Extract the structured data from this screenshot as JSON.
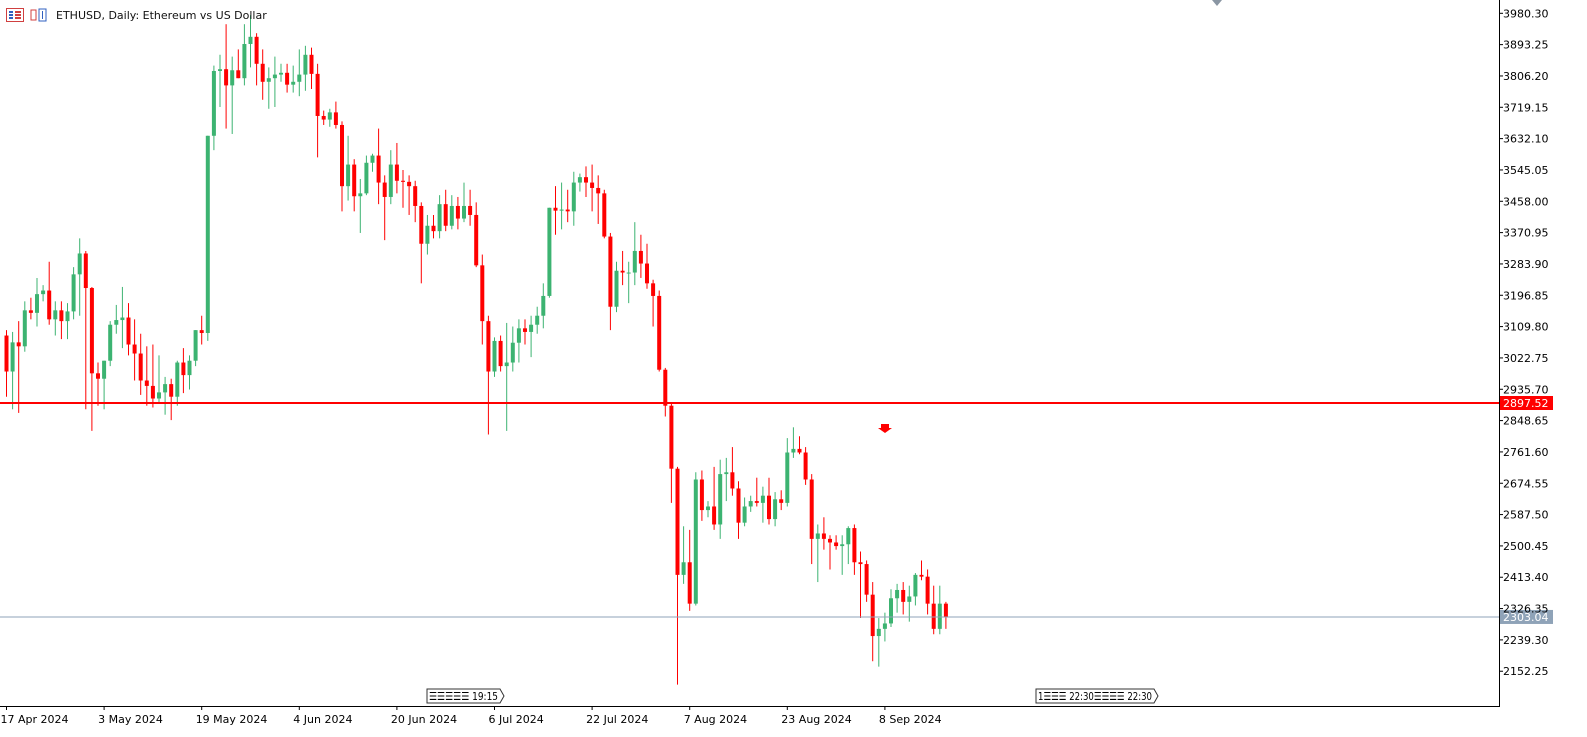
{
  "header": {
    "symbol": "ETHUSD",
    "timeframe": "Daily",
    "description": "Ethereum vs US Dollar",
    "title_text": "ETHUSD, Daily:  Ethereum vs US Dollar"
  },
  "colors": {
    "bull": "#3cb371",
    "bear": "#ff0000",
    "axis": "#000000",
    "hline": "#ff0000",
    "bid_line": "#8fa3b8",
    "bid_label_bg": "#8fa3b8"
  },
  "price_labels": {
    "hline": "2897.52",
    "bid": "2303.04"
  },
  "event_markers": [
    {
      "text": "☰☰☰☰☰ 19:15"
    },
    {
      "text": "1☰☰☰ 22:30☰☰☰☰ 22:30"
    }
  ],
  "chart_data": {
    "type": "candlestick",
    "title": "ETHUSD, Daily:  Ethereum vs US Dollar",
    "y_ticks": [
      "3980.30",
      "3893.25",
      "3806.20",
      "3719.15",
      "3632.10",
      "3545.05",
      "3458.00",
      "3370.95",
      "3283.90",
      "3196.85",
      "3109.80",
      "3022.75",
      "2935.70",
      "2848.65",
      "2761.60",
      "2674.55",
      "2587.50",
      "2500.45",
      "2413.40",
      "2326.35",
      "2239.30",
      "2152.25"
    ],
    "x_ticks": [
      "17 Apr 2024",
      "3 May 2024",
      "19 May 2024",
      "4 Jun 2024",
      "20 Jun 2024",
      "6 Jul 2024",
      "22 Jul 2024",
      "7 Aug 2024",
      "23 Aug 2024",
      "8 Sep 2024"
    ],
    "ylim": [
      2100,
      3995
    ],
    "horizontal_line": 2897.52,
    "bid_line": 2303.04,
    "first_date": "17 Apr 2024",
    "candles": [
      {
        "d": "17 Apr",
        "o": 3085,
        "h": 3100,
        "l": 2915,
        "c": 2985
      },
      {
        "d": "18 Apr",
        "o": 2985,
        "h": 3095,
        "l": 2880,
        "c": 3066
      },
      {
        "d": "19 Apr",
        "o": 3066,
        "h": 3125,
        "l": 2870,
        "c": 3055
      },
      {
        "d": "20 Apr",
        "o": 3055,
        "h": 3180,
        "l": 3040,
        "c": 3155
      },
      {
        "d": "21 Apr",
        "o": 3155,
        "h": 3190,
        "l": 3130,
        "c": 3148
      },
      {
        "d": "22 Apr",
        "o": 3148,
        "h": 3245,
        "l": 3110,
        "c": 3200
      },
      {
        "d": "23 Apr",
        "o": 3200,
        "h": 3225,
        "l": 3180,
        "c": 3210
      },
      {
        "d": "24 Apr",
        "o": 3210,
        "h": 3290,
        "l": 3115,
        "c": 3130
      },
      {
        "d": "25 Apr",
        "o": 3130,
        "h": 3180,
        "l": 3085,
        "c": 3155
      },
      {
        "d": "26 Apr",
        "o": 3155,
        "h": 3180,
        "l": 3075,
        "c": 3125
      },
      {
        "d": "27 Apr",
        "o": 3125,
        "h": 3175,
        "l": 3075,
        "c": 3152
      },
      {
        "d": "28 Apr",
        "o": 3152,
        "h": 3275,
        "l": 3130,
        "c": 3255
      },
      {
        "d": "29 Apr",
        "o": 3255,
        "h": 3355,
        "l": 3140,
        "c": 3313
      },
      {
        "d": "30 Apr",
        "o": 3313,
        "h": 3320,
        "l": 2880,
        "c": 3217
      },
      {
        "d": "1 May",
        "o": 3217,
        "h": 3220,
        "l": 2820,
        "c": 2980
      },
      {
        "d": "2 May",
        "o": 2980,
        "h": 3010,
        "l": 2890,
        "c": 2965
      },
      {
        "d": "3 May",
        "o": 2965,
        "h": 3015,
        "l": 2880,
        "c": 3015
      },
      {
        "d": "4 May",
        "o": 3015,
        "h": 3125,
        "l": 3000,
        "c": 3115
      },
      {
        "d": "5 May",
        "o": 3115,
        "h": 3170,
        "l": 3090,
        "c": 3128
      },
      {
        "d": "6 May",
        "o": 3128,
        "h": 3220,
        "l": 3050,
        "c": 3135
      },
      {
        "d": "7 May",
        "o": 3135,
        "h": 3175,
        "l": 3030,
        "c": 3060
      },
      {
        "d": "8 May",
        "o": 3060,
        "h": 3130,
        "l": 2960,
        "c": 3035
      },
      {
        "d": "9 May",
        "o": 3035,
        "h": 3090,
        "l": 2920,
        "c": 2960
      },
      {
        "d": "10 May",
        "o": 2960,
        "h": 3055,
        "l": 2890,
        "c": 2945
      },
      {
        "d": "11 May",
        "o": 2945,
        "h": 3060,
        "l": 2885,
        "c": 2910
      },
      {
        "d": "12 May",
        "o": 2910,
        "h": 3030,
        "l": 2900,
        "c": 2927
      },
      {
        "d": "13 May",
        "o": 2927,
        "h": 2970,
        "l": 2865,
        "c": 2950
      },
      {
        "d": "14 May",
        "o": 2950,
        "h": 2965,
        "l": 2850,
        "c": 2915
      },
      {
        "d": "15 May",
        "o": 2915,
        "h": 3015,
        "l": 2890,
        "c": 3010
      },
      {
        "d": "16 May",
        "o": 3010,
        "h": 3050,
        "l": 2925,
        "c": 2975
      },
      {
        "d": "17 May",
        "o": 2975,
        "h": 3030,
        "l": 2935,
        "c": 3015
      },
      {
        "d": "18 May",
        "o": 3015,
        "h": 3100,
        "l": 3000,
        "c": 3100
      },
      {
        "d": "19 May",
        "o": 3100,
        "h": 3140,
        "l": 3060,
        "c": 3092
      },
      {
        "d": "20 May",
        "o": 3092,
        "h": 3640,
        "l": 3070,
        "c": 3640
      },
      {
        "d": "21 May",
        "o": 3640,
        "h": 3835,
        "l": 3600,
        "c": 3820
      },
      {
        "d": "22 May",
        "o": 3820,
        "h": 3865,
        "l": 3720,
        "c": 3825
      },
      {
        "d": "23 May",
        "o": 3825,
        "h": 3950,
        "l": 3660,
        "c": 3780
      },
      {
        "d": "24 May",
        "o": 3780,
        "h": 3860,
        "l": 3645,
        "c": 3822
      },
      {
        "d": "25 May",
        "o": 3822,
        "h": 3880,
        "l": 3800,
        "c": 3800
      },
      {
        "d": "26 May",
        "o": 3800,
        "h": 3950,
        "l": 3780,
        "c": 3895
      },
      {
        "d": "27 May",
        "o": 3895,
        "h": 3975,
        "l": 3830,
        "c": 3915
      },
      {
        "d": "28 May",
        "o": 3915,
        "h": 3925,
        "l": 3780,
        "c": 3840
      },
      {
        "d": "29 May",
        "o": 3840,
        "h": 3880,
        "l": 3740,
        "c": 3790
      },
      {
        "d": "30 May",
        "o": 3790,
        "h": 3830,
        "l": 3715,
        "c": 3800
      },
      {
        "d": "31 May",
        "o": 3800,
        "h": 3860,
        "l": 3720,
        "c": 3810
      },
      {
        "d": "1 Jun",
        "o": 3810,
        "h": 3840,
        "l": 3790,
        "c": 3815
      },
      {
        "d": "2 Jun",
        "o": 3815,
        "h": 3840,
        "l": 3760,
        "c": 3782
      },
      {
        "d": "3 Jun",
        "o": 3782,
        "h": 3835,
        "l": 3760,
        "c": 3790
      },
      {
        "d": "4 Jun",
        "o": 3790,
        "h": 3880,
        "l": 3750,
        "c": 3810
      },
      {
        "d": "5 Jun",
        "o": 3810,
        "h": 3890,
        "l": 3765,
        "c": 3865
      },
      {
        "d": "6 Jun",
        "o": 3865,
        "h": 3885,
        "l": 3770,
        "c": 3812
      },
      {
        "d": "7 Jun",
        "o": 3812,
        "h": 3840,
        "l": 3580,
        "c": 3695
      },
      {
        "d": "8 Jun",
        "o": 3695,
        "h": 3710,
        "l": 3670,
        "c": 3685
      },
      {
        "d": "9 Jun",
        "o": 3685,
        "h": 3715,
        "l": 3665,
        "c": 3705
      },
      {
        "d": "10 Jun",
        "o": 3705,
        "h": 3735,
        "l": 3660,
        "c": 3670
      },
      {
        "d": "11 Jun",
        "o": 3670,
        "h": 3680,
        "l": 3430,
        "c": 3500
      },
      {
        "d": "12 Jun",
        "o": 3500,
        "h": 3640,
        "l": 3460,
        "c": 3560
      },
      {
        "d": "13 Jun",
        "o": 3560,
        "h": 3575,
        "l": 3430,
        "c": 3472
      },
      {
        "d": "14 Jun",
        "o": 3472,
        "h": 3520,
        "l": 3370,
        "c": 3480
      },
      {
        "d": "15 Jun",
        "o": 3480,
        "h": 3585,
        "l": 3475,
        "c": 3565
      },
      {
        "d": "16 Jun",
        "o": 3565,
        "h": 3590,
        "l": 3540,
        "c": 3585
      },
      {
        "d": "17 Jun",
        "o": 3585,
        "h": 3660,
        "l": 3450,
        "c": 3510
      },
      {
        "d": "18 Jun",
        "o": 3510,
        "h": 3530,
        "l": 3350,
        "c": 3470
      },
      {
        "d": "19 Jun",
        "o": 3470,
        "h": 3600,
        "l": 3450,
        "c": 3560
      },
      {
        "d": "20 Jun",
        "o": 3560,
        "h": 3620,
        "l": 3480,
        "c": 3515
      },
      {
        "d": "21 Jun",
        "o": 3515,
        "h": 3545,
        "l": 3440,
        "c": 3512
      },
      {
        "d": "22 Jun",
        "o": 3512,
        "h": 3530,
        "l": 3420,
        "c": 3500
      },
      {
        "d": "23 Jun",
        "o": 3500,
        "h": 3515,
        "l": 3400,
        "c": 3445
      },
      {
        "d": "24 Jun",
        "o": 3445,
        "h": 3455,
        "l": 3230,
        "c": 3340
      },
      {
        "d": "25 Jun",
        "o": 3340,
        "h": 3420,
        "l": 3310,
        "c": 3390
      },
      {
        "d": "26 Jun",
        "o": 3390,
        "h": 3420,
        "l": 3355,
        "c": 3375
      },
      {
        "d": "27 Jun",
        "o": 3375,
        "h": 3475,
        "l": 3355,
        "c": 3450
      },
      {
        "d": "28 Jun",
        "o": 3450,
        "h": 3490,
        "l": 3375,
        "c": 3390
      },
      {
        "d": "29 Jun",
        "o": 3390,
        "h": 3475,
        "l": 3380,
        "c": 3445
      },
      {
        "d": "30 Jun",
        "o": 3445,
        "h": 3470,
        "l": 3380,
        "c": 3410
      },
      {
        "d": "1 Jul",
        "o": 3410,
        "h": 3510,
        "l": 3400,
        "c": 3445
      },
      {
        "d": "2 Jul",
        "o": 3445,
        "h": 3490,
        "l": 3390,
        "c": 3420
      },
      {
        "d": "3 Jul",
        "o": 3420,
        "h": 3455,
        "l": 3275,
        "c": 3280
      },
      {
        "d": "4 Jul",
        "o": 3280,
        "h": 3310,
        "l": 3060,
        "c": 3125
      },
      {
        "d": "5 Jul",
        "o": 3125,
        "h": 3140,
        "l": 2810,
        "c": 2985
      },
      {
        "d": "6 Jul",
        "o": 2985,
        "h": 3080,
        "l": 2970,
        "c": 3070
      },
      {
        "d": "7 Jul",
        "o": 3070,
        "h": 3085,
        "l": 2985,
        "c": 3000
      },
      {
        "d": "8 Jul",
        "o": 3000,
        "h": 3120,
        "l": 2820,
        "c": 3010
      },
      {
        "d": "9 Jul",
        "o": 3010,
        "h": 3110,
        "l": 2985,
        "c": 3065
      },
      {
        "d": "10 Jul",
        "o": 3065,
        "h": 3130,
        "l": 3010,
        "c": 3105
      },
      {
        "d": "11 Jul",
        "o": 3105,
        "h": 3130,
        "l": 3060,
        "c": 3095
      },
      {
        "d": "12 Jul",
        "o": 3095,
        "h": 3140,
        "l": 3025,
        "c": 3115
      },
      {
        "d": "13 Jul",
        "o": 3115,
        "h": 3165,
        "l": 3090,
        "c": 3140
      },
      {
        "d": "14 Jul",
        "o": 3140,
        "h": 3230,
        "l": 3105,
        "c": 3195
      },
      {
        "d": "15 Jul",
        "o": 3195,
        "h": 3440,
        "l": 3190,
        "c": 3440
      },
      {
        "d": "16 Jul",
        "o": 3440,
        "h": 3500,
        "l": 3365,
        "c": 3432
      },
      {
        "d": "17 Jul",
        "o": 3432,
        "h": 3510,
        "l": 3380,
        "c": 3435
      },
      {
        "d": "18 Jul",
        "o": 3435,
        "h": 3490,
        "l": 3400,
        "c": 3430
      },
      {
        "d": "19 Jul",
        "o": 3430,
        "h": 3540,
        "l": 3390,
        "c": 3510
      },
      {
        "d": "20 Jul",
        "o": 3510,
        "h": 3535,
        "l": 3485,
        "c": 3525
      },
      {
        "d": "21 Jul",
        "o": 3525,
        "h": 3555,
        "l": 3470,
        "c": 3510
      },
      {
        "d": "22 Jul",
        "o": 3510,
        "h": 3560,
        "l": 3430,
        "c": 3495
      },
      {
        "d": "23 Jul",
        "o": 3495,
        "h": 3530,
        "l": 3395,
        "c": 3480
      },
      {
        "d": "24 Jul",
        "o": 3480,
        "h": 3490,
        "l": 3355,
        "c": 3360
      },
      {
        "d": "25 Jul",
        "o": 3360,
        "h": 3370,
        "l": 3100,
        "c": 3165
      },
      {
        "d": "26 Jul",
        "o": 3165,
        "h": 3290,
        "l": 3150,
        "c": 3265
      },
      {
        "d": "27 Jul",
        "o": 3265,
        "h": 3320,
        "l": 3225,
        "c": 3260
      },
      {
        "d": "28 Jul",
        "o": 3260,
        "h": 3290,
        "l": 3175,
        "c": 3260
      },
      {
        "d": "29 Jul",
        "o": 3260,
        "h": 3400,
        "l": 3225,
        "c": 3320
      },
      {
        "d": "30 Jul",
        "o": 3320,
        "h": 3365,
        "l": 3245,
        "c": 3285
      },
      {
        "d": "31 Jul",
        "o": 3285,
        "h": 3340,
        "l": 3215,
        "c": 3230
      },
      {
        "d": "1 Aug",
        "o": 3230,
        "h": 3240,
        "l": 3110,
        "c": 3195
      },
      {
        "d": "2 Aug",
        "o": 3195,
        "h": 3210,
        "l": 2985,
        "c": 2990
      },
      {
        "d": "3 Aug",
        "o": 2990,
        "h": 2995,
        "l": 2860,
        "c": 2890
      },
      {
        "d": "4 Aug",
        "o": 2890,
        "h": 2895,
        "l": 2620,
        "c": 2715
      },
      {
        "d": "5 Aug",
        "o": 2715,
        "h": 2720,
        "l": 2115,
        "c": 2420
      },
      {
        "d": "6 Aug",
        "o": 2420,
        "h": 2555,
        "l": 2395,
        "c": 2455
      },
      {
        "d": "7 Aug",
        "o": 2455,
        "h": 2545,
        "l": 2320,
        "c": 2340
      },
      {
        "d": "8 Aug",
        "o": 2340,
        "h": 2705,
        "l": 2335,
        "c": 2685
      },
      {
        "d": "9 Aug",
        "o": 2685,
        "h": 2710,
        "l": 2570,
        "c": 2600
      },
      {
        "d": "10 Aug",
        "o": 2600,
        "h": 2625,
        "l": 2580,
        "c": 2610
      },
      {
        "d": "11 Aug",
        "o": 2610,
        "h": 2720,
        "l": 2545,
        "c": 2560
      },
      {
        "d": "12 Aug",
        "o": 2560,
        "h": 2740,
        "l": 2520,
        "c": 2700
      },
      {
        "d": "13 Aug",
        "o": 2700,
        "h": 2745,
        "l": 2625,
        "c": 2705
      },
      {
        "d": "14 Aug",
        "o": 2705,
        "h": 2775,
        "l": 2640,
        "c": 2660
      },
      {
        "d": "15 Aug",
        "o": 2660,
        "h": 2680,
        "l": 2520,
        "c": 2565
      },
      {
        "d": "16 Aug",
        "o": 2565,
        "h": 2635,
        "l": 2555,
        "c": 2610
      },
      {
        "d": "17 Aug",
        "o": 2610,
        "h": 2640,
        "l": 2595,
        "c": 2625
      },
      {
        "d": "18 Aug",
        "o": 2625,
        "h": 2690,
        "l": 2610,
        "c": 2620
      },
      {
        "d": "19 Aug",
        "o": 2620,
        "h": 2665,
        "l": 2565,
        "c": 2640
      },
      {
        "d": "20 Aug",
        "o": 2640,
        "h": 2690,
        "l": 2560,
        "c": 2575
      },
      {
        "d": "21 Aug",
        "o": 2575,
        "h": 2650,
        "l": 2555,
        "c": 2630
      },
      {
        "d": "22 Aug",
        "o": 2630,
        "h": 2655,
        "l": 2600,
        "c": 2620
      },
      {
        "d": "23 Aug",
        "o": 2620,
        "h": 2800,
        "l": 2610,
        "c": 2760
      },
      {
        "d": "24 Aug",
        "o": 2760,
        "h": 2830,
        "l": 2745,
        "c": 2770
      },
      {
        "d": "25 Aug",
        "o": 2770,
        "h": 2805,
        "l": 2755,
        "c": 2760
      },
      {
        "d": "26 Aug",
        "o": 2760,
        "h": 2775,
        "l": 2670,
        "c": 2685
      },
      {
        "d": "27 Aug",
        "o": 2685,
        "h": 2700,
        "l": 2450,
        "c": 2520
      },
      {
        "d": "28 Aug",
        "o": 2520,
        "h": 2560,
        "l": 2400,
        "c": 2535
      },
      {
        "d": "29 Aug",
        "o": 2535,
        "h": 2580,
        "l": 2490,
        "c": 2520
      },
      {
        "d": "30 Aug",
        "o": 2520,
        "h": 2530,
        "l": 2435,
        "c": 2510
      },
      {
        "d": "31 Aug",
        "o": 2510,
        "h": 2530,
        "l": 2490,
        "c": 2500
      },
      {
        "d": "1 Sep",
        "o": 2500,
        "h": 2530,
        "l": 2420,
        "c": 2505
      },
      {
        "d": "2 Sep",
        "o": 2505,
        "h": 2555,
        "l": 2450,
        "c": 2550
      },
      {
        "d": "3 Sep",
        "o": 2550,
        "h": 2560,
        "l": 2420,
        "c": 2455
      },
      {
        "d": "4 Sep",
        "o": 2455,
        "h": 2485,
        "l": 2300,
        "c": 2450
      },
      {
        "d": "5 Sep",
        "o": 2450,
        "h": 2460,
        "l": 2345,
        "c": 2365
      },
      {
        "d": "6 Sep",
        "o": 2365,
        "h": 2400,
        "l": 2180,
        "c": 2250
      },
      {
        "d": "7 Sep",
        "o": 2250,
        "h": 2300,
        "l": 2165,
        "c": 2270
      },
      {
        "d": "8 Sep",
        "o": 2270,
        "h": 2315,
        "l": 2235,
        "c": 2285
      },
      {
        "d": "9 Sep",
        "o": 2285,
        "h": 2380,
        "l": 2275,
        "c": 2355
      },
      {
        "d": "10 Sep",
        "o": 2355,
        "h": 2395,
        "l": 2315,
        "c": 2378
      },
      {
        "d": "11 Sep",
        "o": 2378,
        "h": 2400,
        "l": 2310,
        "c": 2345
      },
      {
        "d": "12 Sep",
        "o": 2345,
        "h": 2390,
        "l": 2290,
        "c": 2360
      },
      {
        "d": "13 Sep",
        "o": 2360,
        "h": 2425,
        "l": 2335,
        "c": 2420
      },
      {
        "d": "14 Sep",
        "o": 2420,
        "h": 2460,
        "l": 2405,
        "c": 2415
      },
      {
        "d": "15 Sep",
        "o": 2415,
        "h": 2435,
        "l": 2310,
        "c": 2340
      },
      {
        "d": "16 Sep",
        "o": 2340,
        "h": 2390,
        "l": 2255,
        "c": 2270
      },
      {
        "d": "17 Sep",
        "o": 2270,
        "h": 2390,
        "l": 2255,
        "c": 2340
      },
      {
        "d": "18 Sep",
        "o": 2340,
        "h": 2345,
        "l": 2270,
        "c": 2303
      }
    ]
  }
}
